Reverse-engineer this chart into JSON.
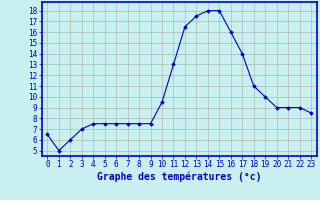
{
  "x": [
    0,
    1,
    2,
    3,
    4,
    5,
    6,
    7,
    8,
    9,
    10,
    11,
    12,
    13,
    14,
    15,
    16,
    17,
    18,
    19,
    20,
    21,
    22,
    23
  ],
  "y": [
    6.5,
    5.0,
    6.0,
    7.0,
    7.5,
    7.5,
    7.5,
    7.5,
    7.5,
    7.5,
    9.5,
    13.0,
    16.5,
    17.5,
    18.0,
    18.0,
    16.0,
    14.0,
    11.0,
    10.0,
    9.0,
    9.0,
    9.0,
    8.5
  ],
  "line_color": "#0000cc",
  "marker": "D",
  "marker_size": 1.8,
  "bg_color": "#c8f0f0",
  "grid_color": "#b0b8b0",
  "xlabel": "Graphe des températures (°c)",
  "xlabel_color": "#0000cc",
  "xlabel_fontsize": 7,
  "ylabel_ticks": [
    5,
    6,
    7,
    8,
    9,
    10,
    11,
    12,
    13,
    14,
    15,
    16,
    17,
    18
  ],
  "xtick_labels": [
    "0",
    "1",
    "2",
    "3",
    "4",
    "5",
    "6",
    "7",
    "8",
    "9",
    "10",
    "11",
    "12",
    "13",
    "14",
    "15",
    "16",
    "17",
    "18",
    "19",
    "20",
    "21",
    "22",
    "23"
  ],
  "ylim": [
    4.5,
    18.8
  ],
  "xlim": [
    -0.5,
    23.5
  ],
  "tick_color": "#0000cc",
  "tick_fontsize": 5.5,
  "axis_color": "#0000cc",
  "spine_color": "#0000cc"
}
